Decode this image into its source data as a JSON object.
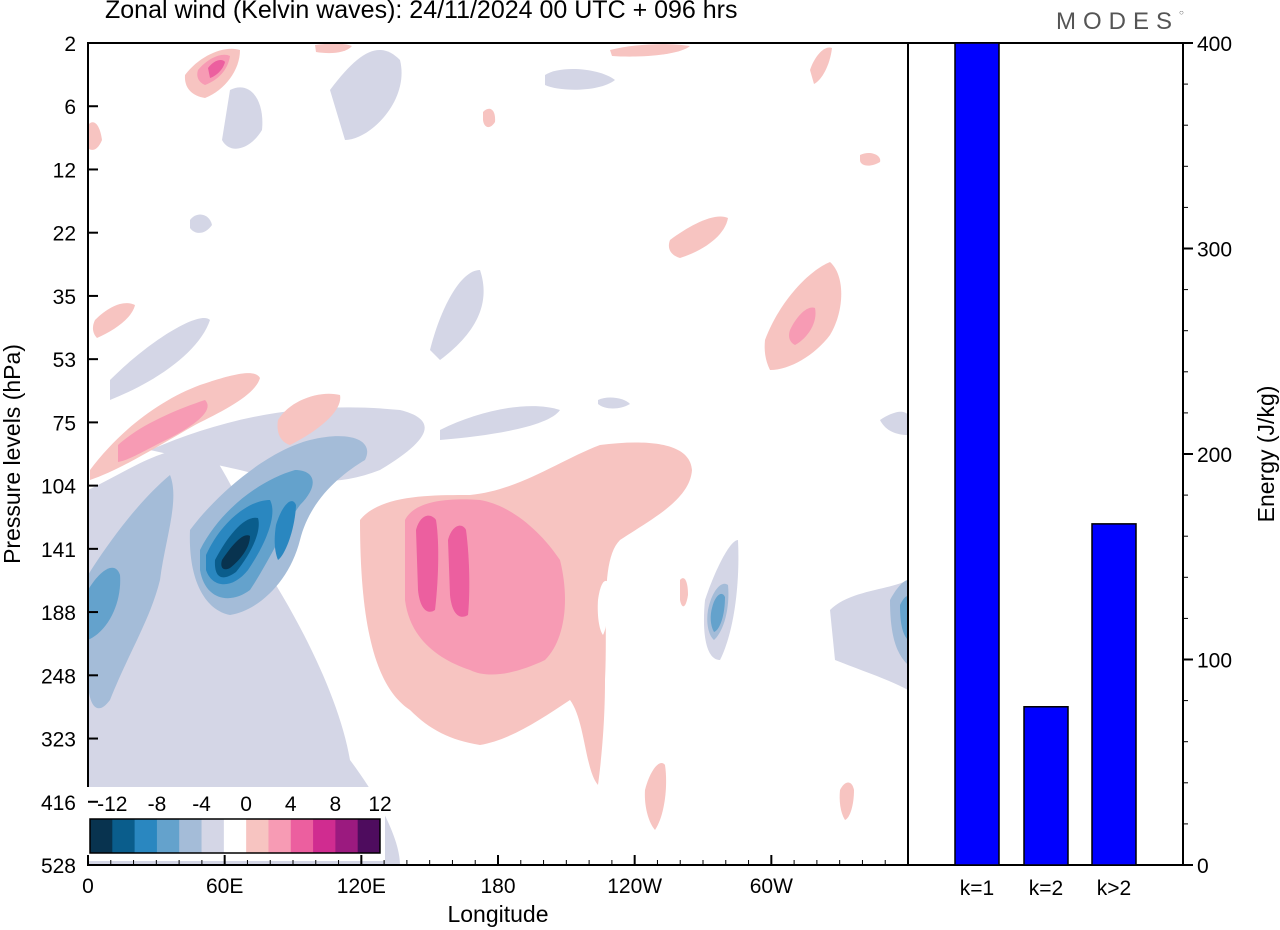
{
  "page": {
    "title": "Zonal wind (Kelvin waves):  24/11/2024  00 UTC  + 096 hrs",
    "brand": "MODES"
  },
  "chart_data": [
    {
      "type": "heatmap",
      "title": "Zonal wind (Kelvin waves):  24/11/2024  00 UTC  + 096 hrs",
      "xlabel": "Longitude",
      "ylabel": "Pressure levels (hPa)",
      "x_ticks": [
        "0",
        "60E",
        "120E",
        "180",
        "120W",
        "60W"
      ],
      "x_tick_values": [
        0,
        60,
        120,
        180,
        240,
        300
      ],
      "xlim": [
        0,
        360
      ],
      "y_ticks": [
        "2",
        "6",
        "12",
        "22",
        "35",
        "53",
        "75",
        "104",
        "141",
        "188",
        "248",
        "323",
        "416",
        "528"
      ],
      "colorbar": {
        "labels": [
          "-12",
          "-8",
          "-4",
          "0",
          "4",
          "8",
          "12"
        ],
        "levels": [
          -14,
          -12,
          -10,
          -8,
          -6,
          -4,
          -2,
          2,
          4,
          6,
          8,
          10,
          12,
          14
        ],
        "colors": [
          "#08334f",
          "#0a5d8c",
          "#2a87c0",
          "#64a2cc",
          "#a4bcd8",
          "#d4d6e6",
          "#ffffff",
          "#f7c4c1",
          "#f79bb4",
          "#ec5f9f",
          "#d02c90",
          "#9b1a7f",
          "#4e0c5e"
        ]
      },
      "regions": [
        {
          "name": "negative-wind-tropopause-west",
          "value": -3,
          "lon": [
            0,
            80
          ],
          "level": [
            104,
            400
          ]
        },
        {
          "name": "negative-wind-core-west",
          "value": -13,
          "lon": [
            50,
            75
          ],
          "level": [
            120,
            170
          ]
        },
        {
          "name": "negative-wind-band-west",
          "value": -7,
          "lon": [
            40,
            120
          ],
          "level": [
            75,
            170
          ]
        },
        {
          "name": "positive-wind-core-dateline",
          "value": 8,
          "lon": [
            145,
            170
          ],
          "level": [
            120,
            200
          ]
        },
        {
          "name": "positive-wind-central",
          "value": 5,
          "lon": [
            140,
            210
          ],
          "level": [
            104,
            260
          ]
        },
        {
          "name": "positive-wind-broad",
          "value": 3,
          "lon": [
            120,
            265
          ],
          "level": [
            90,
            400
          ]
        },
        {
          "name": "positive-wind-stratosphere",
          "value": 6,
          "lon": [
            10,
            70
          ],
          "level": [
            53,
            104
          ]
        },
        {
          "name": "positive-wind-upper-east",
          "value": 7,
          "lon": [
            300,
            330
          ],
          "level": [
            30,
            60
          ]
        },
        {
          "name": "negative-wind-east-edge",
          "value": -5,
          "lon": [
            330,
            360
          ],
          "level": [
            150,
            248
          ]
        },
        {
          "name": "positive-wind-top",
          "value": 7,
          "lon": [
            45,
            70
          ],
          "level": [
            2,
            5
          ]
        }
      ]
    },
    {
      "type": "bar",
      "categories": [
        "k=1",
        "k=2",
        "k>2"
      ],
      "values": [
        400,
        77,
        166
      ],
      "ylabel": "Energy (J/kg)",
      "ylim": [
        0,
        400
      ],
      "y_ticks": [
        "0",
        "100",
        "200",
        "300",
        "400"
      ],
      "color": "#0000ff"
    }
  ]
}
